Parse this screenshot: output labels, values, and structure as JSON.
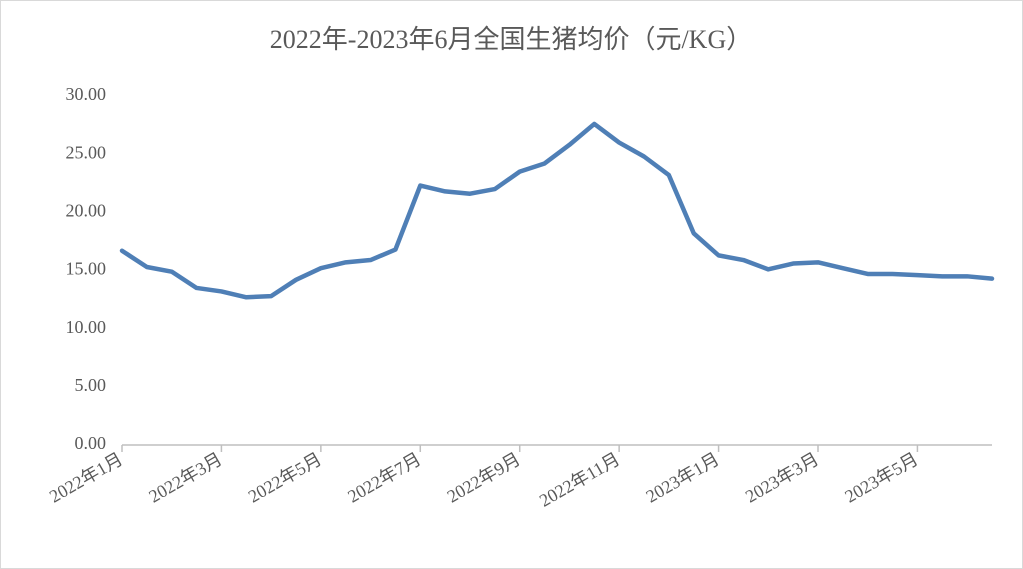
{
  "chart_data": {
    "type": "line",
    "title": "2022年-2023年6月全国生猪均价（元/KG）",
    "categories": [
      "2022年1月",
      null,
      null,
      null,
      "2022年3月",
      null,
      null,
      null,
      "2022年5月",
      null,
      null,
      null,
      "2022年7月",
      null,
      null,
      null,
      "2022年9月",
      null,
      null,
      null,
      "2022年11月",
      null,
      null,
      null,
      "2023年1月",
      null,
      null,
      null,
      "2023年3月",
      null,
      null,
      null,
      "2023年5月",
      null,
      null,
      null
    ],
    "series": [
      {
        "name": "全国生猪均价",
        "color": "#4f7fb6",
        "values": [
          16.7,
          15.3,
          14.9,
          13.5,
          13.2,
          12.7,
          12.8,
          14.2,
          15.2,
          15.7,
          15.9,
          16.8,
          22.3,
          21.8,
          21.6,
          22.0,
          23.5,
          24.2,
          25.8,
          27.6,
          26.0,
          24.8,
          23.2,
          18.2,
          16.3,
          15.9,
          15.1,
          15.6,
          15.7,
          15.2,
          14.7,
          14.7,
          14.6,
          14.5,
          14.5,
          14.3
        ]
      }
    ],
    "ylim": [
      0,
      30
    ],
    "yticks": [
      {
        "value": 0,
        "label": "0.00"
      },
      {
        "value": 5,
        "label": "5.00"
      },
      {
        "value": 10,
        "label": "10.00"
      },
      {
        "value": 15,
        "label": "15.00"
      },
      {
        "value": 20,
        "label": "20.00"
      },
      {
        "value": 25,
        "label": "25.00"
      },
      {
        "value": 30,
        "label": "30.00"
      }
    ],
    "grid": false
  }
}
